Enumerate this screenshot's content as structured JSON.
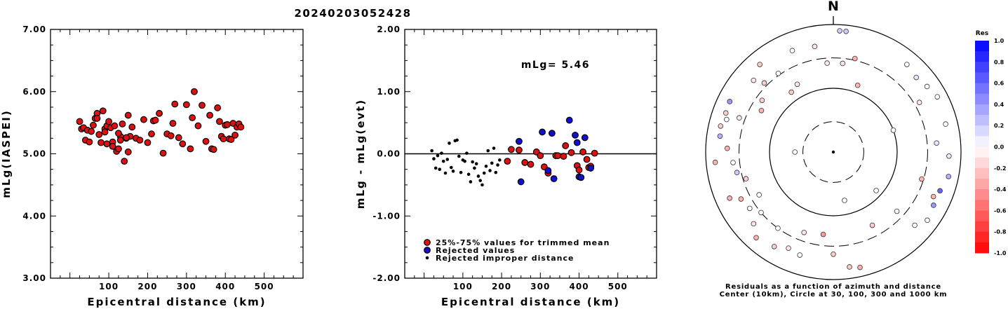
{
  "page_title": "20240203052428",
  "chart_data": [
    {
      "type": "scatter",
      "xlabel": "Epicentral distance (km)",
      "ylabel": "mLg(IASPEI)",
      "xlim": [
        -50,
        600
      ],
      "ylim": [
        3.0,
        7.0
      ],
      "x_ticks": [
        "100",
        "200",
        "300",
        "400",
        "500"
      ],
      "y_ticks": [
        "3.00",
        "4.00",
        "5.00",
        "6.00",
        "7.00"
      ],
      "series": [
        {
          "marker_color": "#dd1111",
          "x": [
            25,
            30,
            35,
            40,
            45,
            50,
            55,
            60,
            65,
            70,
            75,
            80,
            85,
            90,
            95,
            100,
            105,
            110,
            115,
            120,
            125,
            130,
            135,
            140,
            145,
            150,
            155,
            160,
            170,
            180,
            190,
            200,
            210,
            215,
            220,
            230,
            240,
            250,
            260,
            265,
            270,
            280,
            290,
            300,
            310,
            315,
            320,
            330,
            340,
            350,
            360,
            365,
            370,
            380,
            385,
            390,
            395,
            400,
            405,
            410,
            415,
            420,
            425,
            430,
            435,
            440,
            70,
            90,
            110,
            130,
            150,
            95,
            125,
            145
          ],
          "y": [
            5.52,
            5.4,
            5.42,
            5.22,
            5.38,
            5.19,
            5.36,
            5.46,
            5.57,
            5.65,
            5.31,
            5.18,
            5.69,
            5.4,
            5.45,
            5.52,
            5.42,
            5.19,
            5.45,
            5.04,
            5.08,
            5.28,
            5.48,
            4.88,
            5.25,
            5.62,
            5.28,
            5.43,
            5.25,
            5.22,
            5.55,
            5.18,
            5.32,
            5.53,
            5.54,
            5.65,
            5.01,
            5.32,
            5.29,
            5.49,
            5.8,
            5.26,
            5.16,
            5.79,
            5.08,
            5.58,
            6.0,
            5.45,
            5.78,
            5.2,
            5.62,
            5.08,
            5.07,
            5.74,
            5.52,
            5.28,
            5.24,
            5.46,
            5.47,
            5.24,
            5.23,
            5.49,
            5.3,
            5.43,
            5.48,
            5.43,
            5.57,
            5.35,
            5.12,
            5.22,
            5.03,
            5.16,
            5.33,
            5.26
          ]
        }
      ]
    },
    {
      "type": "scatter",
      "xlabel": "Epicentral distance (km)",
      "ylabel": "mLg - mLg(evt)",
      "xlim": [
        -50,
        600
      ],
      "ylim": [
        -2.0,
        2.0
      ],
      "x_ticks": [
        "100",
        "200",
        "300",
        "400",
        "500"
      ],
      "y_ticks": [
        "-2.00",
        "-1.00",
        "0.00",
        "1.00",
        "2.00"
      ],
      "annotation": "mLg= 5.46",
      "reference_line": 0.0,
      "legend": [
        "25%-75% values for trimmed mean",
        "Rejected values",
        "Rejected improper distance"
      ],
      "legend_position": "bottom-left",
      "series": [
        {
          "name": "25%-75% values for trimmed mean",
          "marker_color": "#dd1111",
          "x": [
            215,
            225,
            245,
            260,
            275,
            290,
            300,
            310,
            320,
            340,
            345,
            360,
            365,
            380,
            395,
            400,
            410,
            420,
            425,
            430,
            440
          ],
          "y": [
            -0.12,
            0.07,
            0.06,
            -0.14,
            -0.17,
            0.03,
            -0.03,
            -0.21,
            -0.31,
            -0.03,
            -0.03,
            -0.04,
            0.13,
            0.02,
            -0.19,
            -0.26,
            0.03,
            -0.09,
            -0.22,
            -0.2,
            0.01
          ]
        },
        {
          "name": "Rejected values",
          "marker_color": "#1111cc",
          "x": [
            245,
            250,
            305,
            320,
            330,
            335,
            375,
            390,
            395,
            400,
            405,
            415,
            430
          ],
          "y": [
            0.2,
            -0.45,
            0.35,
            -0.27,
            0.33,
            -0.4,
            0.54,
            0.3,
            0.18,
            -0.37,
            -0.38,
            0.26,
            -0.23
          ],
          "rejected": true
        },
        {
          "name": "Rejected improper distance",
          "marker_color": "#000000",
          "x": [
            20,
            25,
            30,
            35,
            40,
            45,
            50,
            55,
            60,
            65,
            70,
            75,
            80,
            85,
            90,
            95,
            100,
            105,
            110,
            115,
            120,
            125,
            130,
            135,
            140,
            145,
            150,
            155,
            160,
            165,
            170,
            175,
            180,
            185,
            190,
            195
          ],
          "y": [
            0.05,
            -0.08,
            -0.23,
            -0.03,
            -0.25,
            0.01,
            -0.12,
            -0.31,
            -0.09,
            0.17,
            -0.22,
            -0.28,
            0.21,
            0.22,
            -0.04,
            -0.3,
            -0.1,
            -0.12,
            0.01,
            -0.33,
            -0.45,
            -0.13,
            -0.23,
            -0.16,
            -0.36,
            -0.43,
            -0.5,
            -0.31,
            -0.2,
            0.05,
            -0.27,
            -0.15,
            0.09,
            -0.3,
            -0.18,
            -0.1
          ]
        }
      ]
    },
    {
      "type": "polar_scatter",
      "north_label": "N",
      "caption_line1": "Residuals as a function of azimuth and distance",
      "caption_line2": "Center (10km), Circle at 30, 100, 300 and 1000 km",
      "colorbar_title": "Res",
      "colorbar_ticks": [
        "1.0",
        "0.8",
        "0.6",
        "0.4",
        "0.2",
        "0.0",
        "-0.2",
        "-0.4",
        "-0.6",
        "-0.8",
        "-1.0"
      ],
      "colorbar_range": [
        -1.0,
        1.0
      ],
      "positive_color": "#0000ff",
      "negative_color": "#ff0000",
      "rings_km": [
        10,
        30,
        100,
        300,
        1000
      ],
      "stations": [
        {
          "az": 6,
          "dist_km": 800,
          "res": 0.2
        },
        {
          "az": 3,
          "dist_km": 800,
          "res": 0.2
        },
        {
          "az": 338,
          "dist_km": 520,
          "res": 0.0
        },
        {
          "az": 350,
          "dist_km": 480,
          "res": -0.1
        },
        {
          "az": 356,
          "dist_km": 250,
          "res": -0.1
        },
        {
          "az": 6,
          "dist_km": 250,
          "res": -0.1
        },
        {
          "az": 13,
          "dist_km": 320,
          "res": -0.3
        },
        {
          "az": 325,
          "dist_km": 320,
          "res": 0.0
        },
        {
          "az": 332,
          "dist_km": 160,
          "res": -0.1
        },
        {
          "az": 315,
          "dist_km": 340,
          "res": -0.2
        },
        {
          "az": 325,
          "dist_km": 140,
          "res": -0.2
        },
        {
          "az": 40,
          "dist_km": 620,
          "res": 0.0
        },
        {
          "az": 48,
          "dist_km": 560,
          "res": 0.1
        },
        {
          "az": 55,
          "dist_km": 620,
          "res": 0.0
        },
        {
          "az": 20,
          "dist_km": 130,
          "res": -0.3
        },
        {
          "az": 60,
          "dist_km": 360,
          "res": -0.1
        },
        {
          "az": 70,
          "dist_km": 100,
          "res": 0.0
        },
        {
          "az": 62,
          "dist_km": 700,
          "res": 0.0
        },
        {
          "az": 76,
          "dist_km": 650,
          "res": 0.0
        },
        {
          "az": 85,
          "dist_km": 420,
          "res": 0.1
        },
        {
          "az": 92,
          "dist_km": 650,
          "res": 0.1
        },
        {
          "az": 102,
          "dist_km": 700,
          "res": 0.3
        },
        {
          "az": 110,
          "dist_km": 600,
          "res": 0.6
        },
        {
          "az": 118,
          "dist_km": 600,
          "res": 0.4
        },
        {
          "az": 114,
          "dist_km": 520,
          "res": -0.3
        },
        {
          "az": 126,
          "dist_km": 660,
          "res": 0.0
        },
        {
          "az": 132,
          "dist_km": 520,
          "res": 0.0
        },
        {
          "az": 107,
          "dist_km": 280,
          "res": -0.3
        },
        {
          "az": 132,
          "dist_km": 80,
          "res": 0.0
        },
        {
          "az": 152,
          "dist_km": 200,
          "res": -0.2
        },
        {
          "az": 167,
          "dist_km": 60,
          "res": 0.0
        },
        {
          "az": 167,
          "dist_km": 720,
          "res": -0.3
        },
        {
          "az": 172,
          "dist_km": 660,
          "res": -0.2
        },
        {
          "az": 187,
          "dist_km": 200,
          "res": -0.4
        },
        {
          "az": 198,
          "dist_km": 500,
          "res": 0.0
        },
        {
          "az": 205,
          "dist_km": 460,
          "res": -0.1
        },
        {
          "az": 212,
          "dist_km": 560,
          "res": -0.2
        },
        {
          "az": 222,
          "dist_km": 640,
          "res": -0.3
        },
        {
          "az": 228,
          "dist_km": 480,
          "res": -0.1
        },
        {
          "az": 230,
          "dist_km": 300,
          "res": 0.0
        },
        {
          "az": 236,
          "dist_km": 380,
          "res": 0.0
        },
        {
          "az": 243,
          "dist_km": 420,
          "res": -0.3
        },
        {
          "az": 246,
          "dist_km": 600,
          "res": -0.3
        },
        {
          "az": 253,
          "dist_km": 270,
          "res": -0.2
        },
        {
          "az": 258,
          "dist_km": 350,
          "res": 0.2
        },
        {
          "az": 265,
          "dist_km": 720,
          "res": -0.3
        },
        {
          "az": 270,
          "dist_km": 40,
          "res": 0.0
        },
        {
          "az": 272,
          "dist_km": 460,
          "res": -0.3
        },
        {
          "az": 278,
          "dist_km": 620,
          "res": 0.3
        },
        {
          "az": 283,
          "dist_km": 650,
          "res": -0.2
        },
        {
          "az": 287,
          "dist_km": 560,
          "res": 0.0
        },
        {
          "az": 290,
          "dist_km": 620,
          "res": -0.2
        },
        {
          "az": 296,
          "dist_km": 640,
          "res": 0.4
        },
        {
          "az": 300,
          "dist_km": 200,
          "res": -0.3
        },
        {
          "az": 306,
          "dist_km": 240,
          "res": -0.2
        },
        {
          "az": 312,
          "dist_km": 480,
          "res": -0.1
        },
        {
          "az": 320,
          "dist_km": 620,
          "res": -0.2
        },
        {
          "az": 290,
          "dist_km": 370,
          "res": -0.1
        },
        {
          "az": 264,
          "dist_km": 380,
          "res": 0.0
        },
        {
          "az": 240,
          "dist_km": 220,
          "res": 0.0
        },
        {
          "az": 216,
          "dist_km": 300,
          "res": 0.0
        },
        {
          "az": 200,
          "dist_km": 220,
          "res": -0.1
        },
        {
          "az": 180,
          "dist_km": 400,
          "res": -0.2
        },
        {
          "az": 133,
          "dist_km": 230,
          "res": 0.0
        }
      ]
    }
  ]
}
